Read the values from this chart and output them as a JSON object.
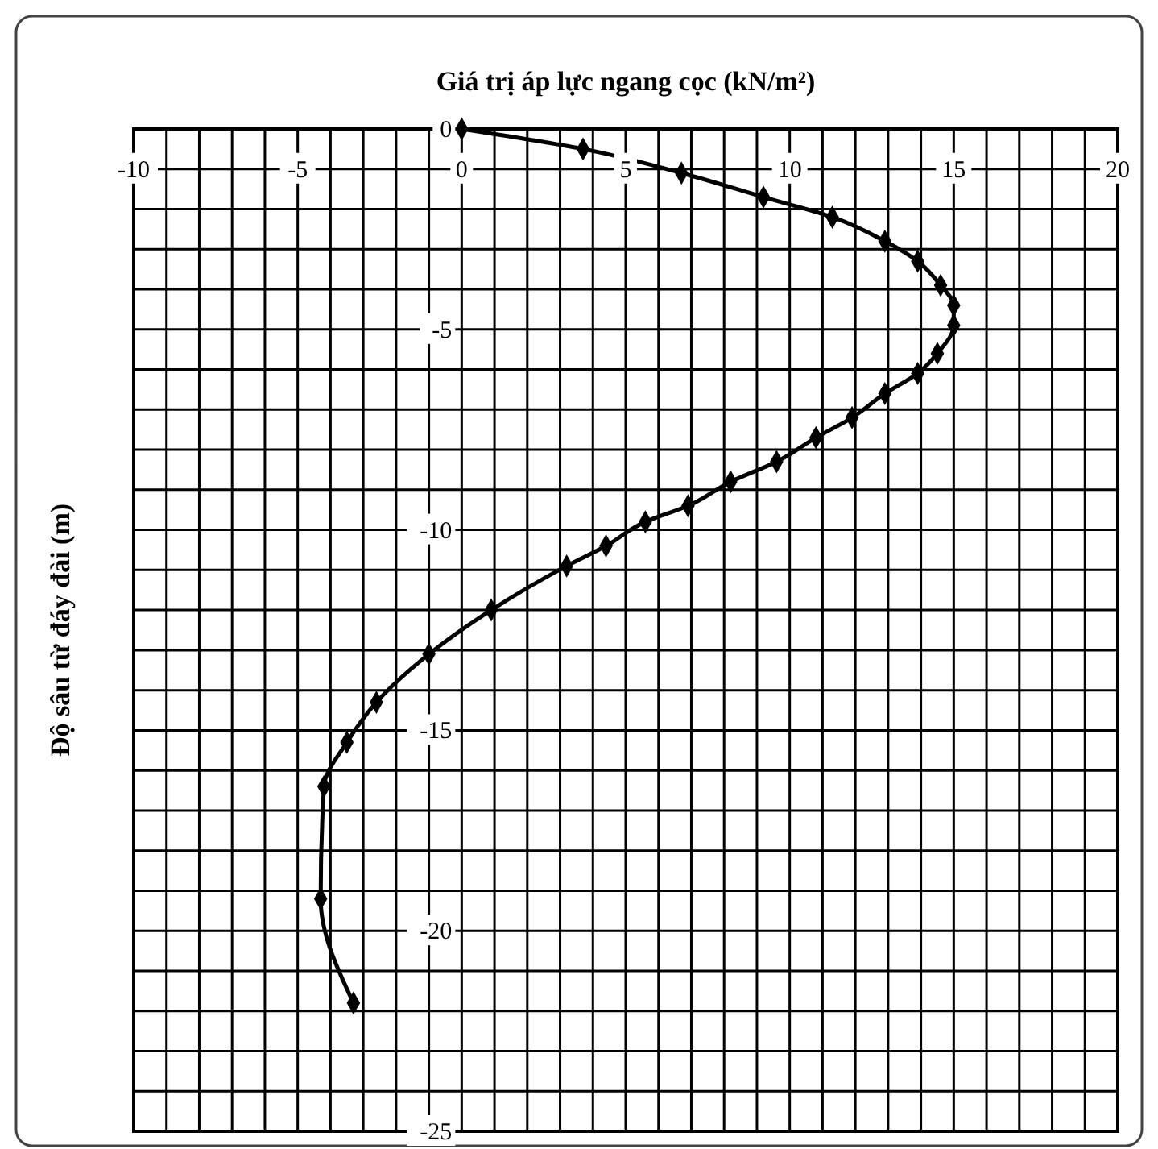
{
  "chart_data": {
    "type": "line",
    "title": "Giá trị áp lực ngang cọc (kN/m²)",
    "ylabel": "Độ sâu từ đáy đài (m)",
    "xlim": [
      -10,
      20
    ],
    "ylim": [
      -25,
      0
    ],
    "xticks": [
      -10,
      {
        "value": -9,
        "label": null
      },
      {
        "value": -8,
        "label": null
      },
      {
        "value": -7,
        "label": null
      },
      {
        "value": -6,
        "label": null
      },
      -5,
      {
        "value": -4,
        "label": null
      },
      {
        "value": -3,
        "label": null
      },
      {
        "value": -2,
        "label": null
      },
      {
        "value": -1,
        "label": null
      },
      0,
      {
        "value": 1,
        "label": null
      },
      {
        "value": 2,
        "label": null
      },
      {
        "value": 3,
        "label": null
      },
      {
        "value": 4,
        "label": null
      },
      5,
      {
        "value": 6,
        "label": null
      },
      {
        "value": 7,
        "label": null
      },
      {
        "value": 8,
        "label": null
      },
      {
        "value": 9,
        "label": null
      },
      10,
      {
        "value": 11,
        "label": null
      },
      {
        "value": 12,
        "label": null
      },
      {
        "value": 13,
        "label": null
      },
      {
        "value": 14,
        "label": null
      },
      15,
      {
        "value": 16,
        "label": null
      },
      {
        "value": 17,
        "label": null
      },
      {
        "value": 18,
        "label": null
      },
      {
        "value": 19,
        "label": null
      },
      20
    ],
    "yticks": [
      -25,
      {
        "value": -24,
        "label": null
      },
      {
        "value": -23,
        "label": null
      },
      {
        "value": -22,
        "label": null
      },
      {
        "value": -21,
        "label": null
      },
      -20,
      {
        "value": -19,
        "label": null
      },
      {
        "value": -18,
        "label": null
      },
      {
        "value": -17,
        "label": null
      },
      {
        "value": -16,
        "label": null
      },
      -15,
      {
        "value": -14,
        "label": null
      },
      {
        "value": -13,
        "label": null
      },
      {
        "value": -12,
        "label": null
      },
      {
        "value": -11,
        "label": null
      },
      -10,
      {
        "value": -9,
        "label": null
      },
      {
        "value": -8,
        "label": null
      },
      {
        "value": -7,
        "label": null
      },
      {
        "value": -6,
        "label": null
      },
      -5,
      {
        "value": -4,
        "label": null
      },
      {
        "value": -3,
        "label": null
      },
      {
        "value": -2,
        "label": null
      },
      {
        "value": -1,
        "label": null
      },
      0
    ],
    "grid": true,
    "marker": "diamond",
    "line_style": "solid",
    "series": [
      {
        "color": "#000000",
        "x": [
          0,
          3.7,
          6.7,
          9.2,
          11.3,
          12.9,
          13.9,
          14.6,
          15.0,
          15.0,
          14.5,
          13.9,
          12.9,
          11.9,
          10.8,
          9.6,
          8.2,
          6.9,
          5.6,
          4.4,
          3.2,
          0.9,
          -1.0,
          -2.6,
          -3.5,
          -4.2,
          -4.3,
          -3.3
        ],
        "values": [
          0,
          -0.5,
          -1.1,
          -1.7,
          -2.2,
          -2.8,
          -3.3,
          -3.9,
          -4.4,
          -4.9,
          -5.6,
          -6.1,
          -6.6,
          -7.2,
          -7.7,
          -8.3,
          -8.8,
          -9.4,
          -9.8,
          -10.4,
          -10.9,
          -12.0,
          -13.1,
          -14.3,
          -15.3,
          -16.4,
          -19.2,
          -21.8
        ]
      }
    ]
  }
}
